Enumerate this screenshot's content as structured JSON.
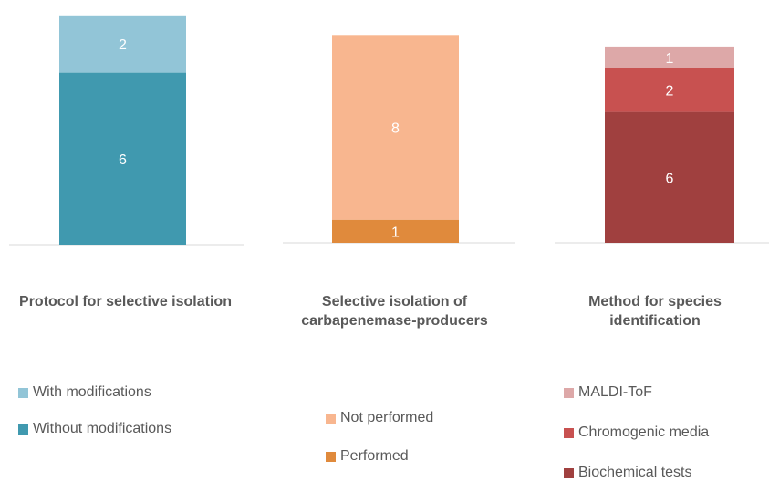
{
  "chart_data": [
    {
      "type": "bar",
      "stacked": true,
      "title": "Protocol for selective isolation",
      "categories": [
        ""
      ],
      "series": [
        {
          "name": "Without modifications",
          "values": [
            6
          ],
          "color": "#4099AF"
        },
        {
          "name": "With modifications",
          "values": [
            2
          ],
          "color": "#92C5D7"
        }
      ],
      "legend_order": [
        "With modifications",
        "Without modifications"
      ],
      "legend_position": "bottom",
      "ylim": [
        0,
        8
      ]
    },
    {
      "type": "bar",
      "stacked": true,
      "title": "Selective isolation of carbapenemase-producers",
      "categories": [
        ""
      ],
      "series": [
        {
          "name": "Performed",
          "values": [
            1
          ],
          "color": "#E08A3C"
        },
        {
          "name": "Not performed",
          "values": [
            8
          ],
          "color": "#F8B68F"
        }
      ],
      "legend_order": [
        "Not performed",
        "Performed"
      ],
      "legend_position": "bottom",
      "ylim": [
        0,
        9
      ]
    },
    {
      "type": "bar",
      "stacked": true,
      "title": "Method for species identification",
      "categories": [
        ""
      ],
      "series": [
        {
          "name": "Biochemical tests",
          "values": [
            6
          ],
          "color": "#A0403F"
        },
        {
          "name": "Chromogenic media",
          "values": [
            2
          ],
          "color": "#C85150"
        },
        {
          "name": "MALDI-ToF",
          "values": [
            1
          ],
          "color": "#DDA8A8"
        }
      ],
      "legend_order": [
        "MALDI-ToF",
        "Chromogenic media",
        "Biochemical tests"
      ],
      "legend_position": "bottom",
      "ylim": [
        0,
        9
      ]
    }
  ]
}
